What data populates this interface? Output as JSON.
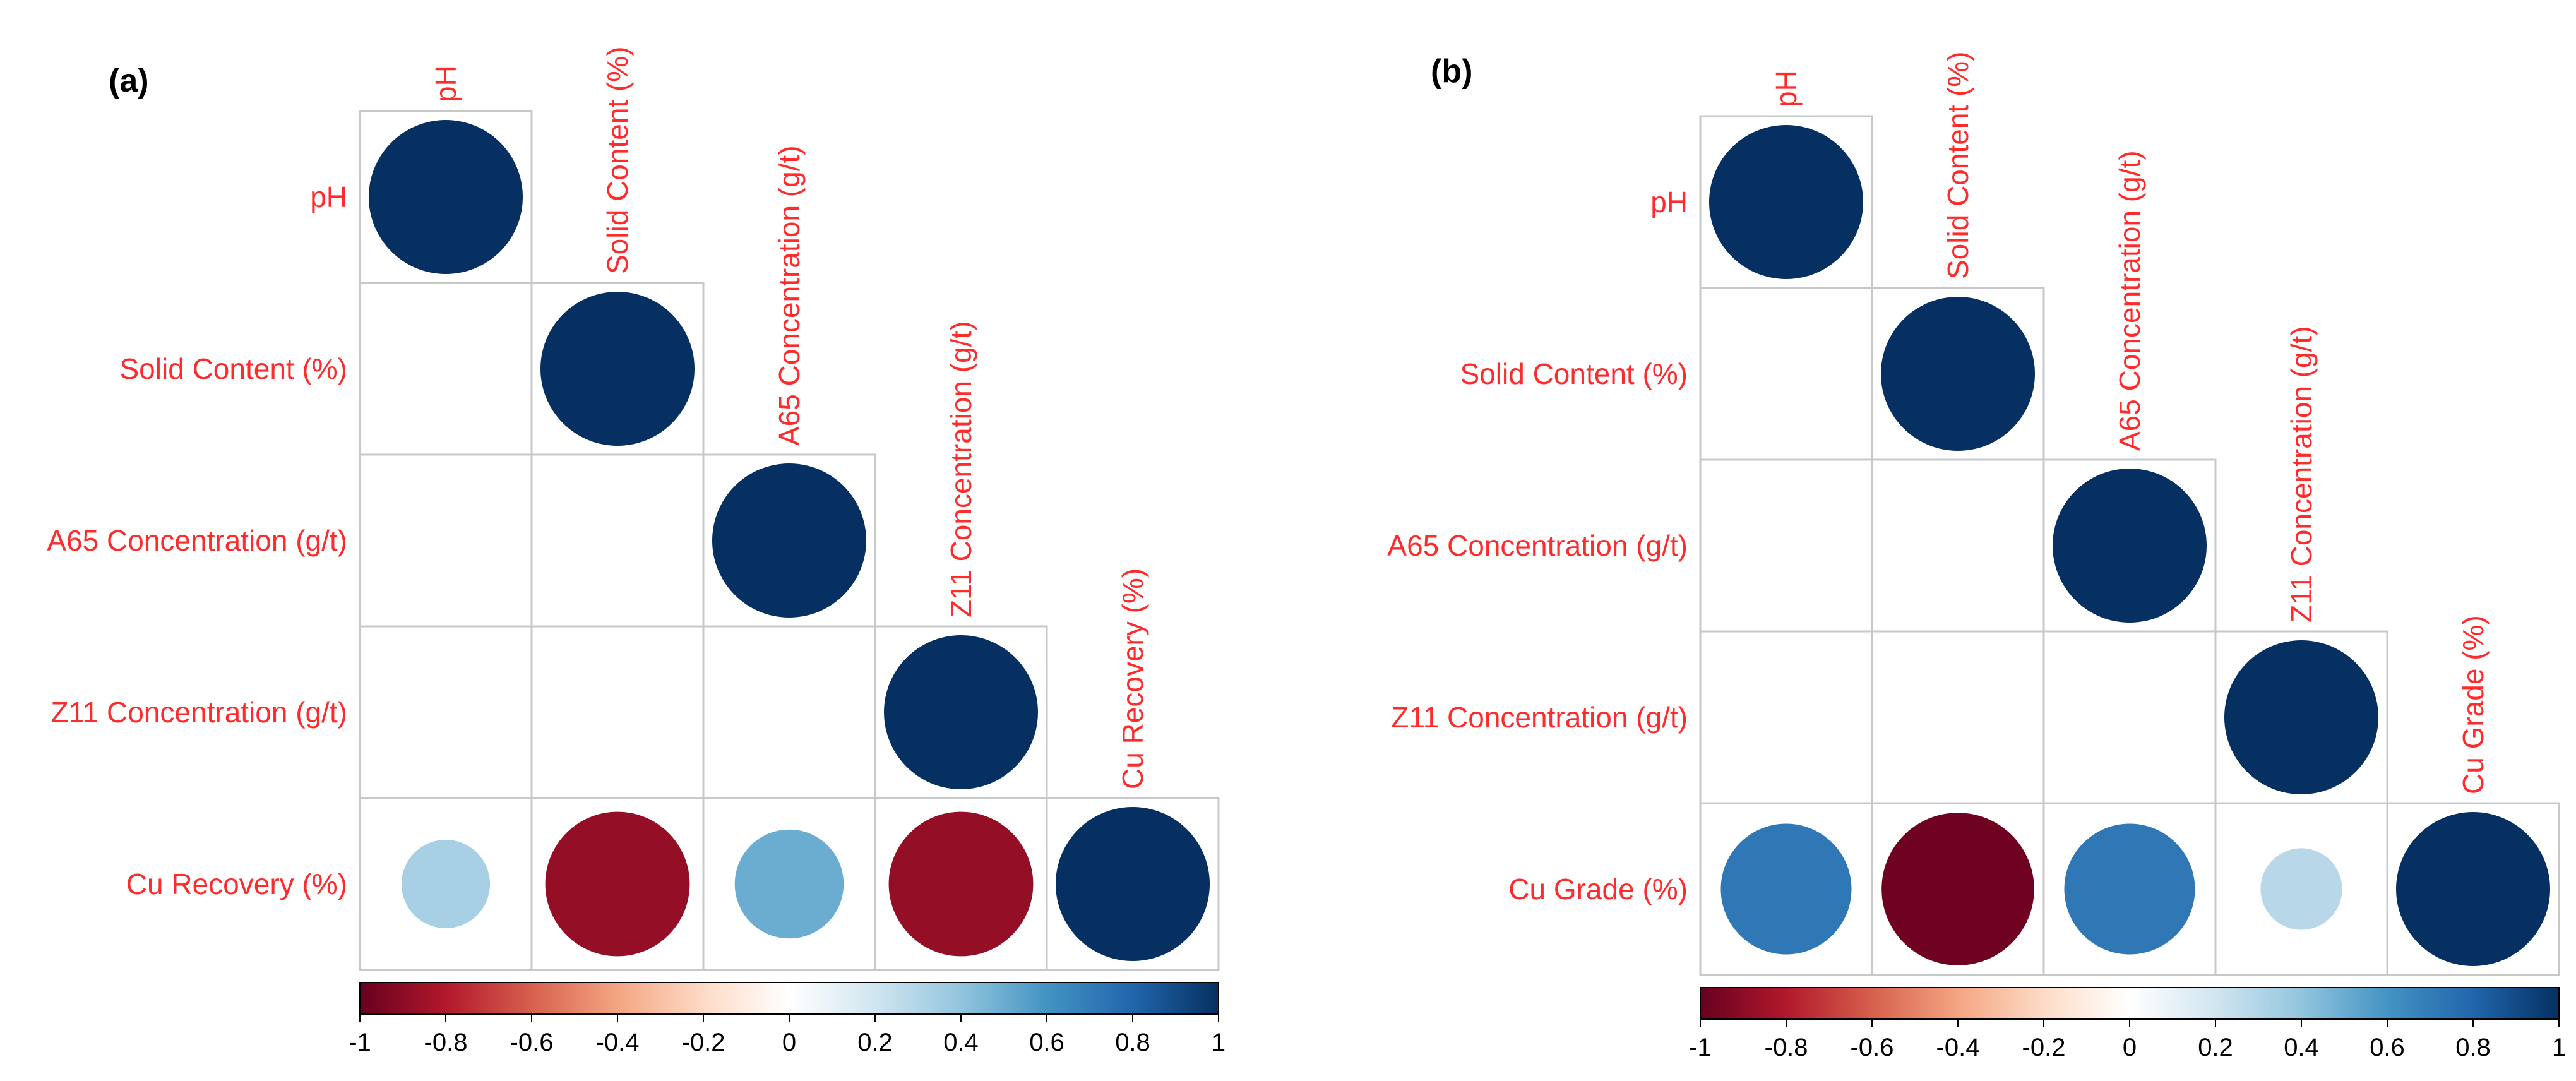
{
  "chart_data": [
    {
      "type": "heatmap",
      "style": "correlation-circle-lower-triangle",
      "panel_label": "(a)",
      "variables": [
        "pH",
        "Solid Content (%)",
        "A65 Concentration (g/t)",
        "Z11 Concentration (g/t)",
        "Cu Recovery (%)"
      ],
      "matrix": [
        [
          1,
          null,
          null,
          null,
          null
        ],
        [
          0,
          1,
          null,
          null,
          null
        ],
        [
          0,
          0,
          1,
          null,
          null
        ],
        [
          0,
          0,
          0,
          1,
          null
        ],
        [
          0.33,
          -0.88,
          0.5,
          -0.88,
          1
        ]
      ],
      "colorbar": {
        "min": -1,
        "max": 1,
        "ticks": [
          "-1",
          "-0.8",
          "-0.6",
          "-0.4",
          "-0.2",
          "0",
          "0.2",
          "0.4",
          "0.6",
          "0.8",
          "1"
        ]
      }
    },
    {
      "type": "heatmap",
      "style": "correlation-circle-lower-triangle",
      "panel_label": "(b)",
      "variables": [
        "pH",
        "Solid Content (%)",
        "A65 Concentration (g/t)",
        "Z11 Concentration (g/t)",
        "Cu Grade (%)"
      ],
      "matrix": [
        [
          1,
          null,
          null,
          null,
          null
        ],
        [
          0,
          1,
          null,
          null,
          null
        ],
        [
          0,
          0,
          1,
          null,
          null
        ],
        [
          0,
          0,
          0,
          1,
          null
        ],
        [
          0.72,
          -0.98,
          0.72,
          0.28,
          1
        ]
      ],
      "colorbar": {
        "min": -1,
        "max": 1,
        "ticks": [
          "-1",
          "-0.8",
          "-0.6",
          "-0.4",
          "-0.2",
          "0",
          "0.2",
          "0.4",
          "0.6",
          "0.8",
          "1"
        ]
      }
    }
  ]
}
